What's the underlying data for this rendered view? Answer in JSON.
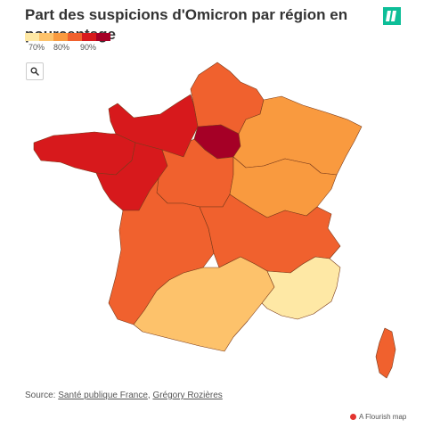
{
  "title": "Part des suspicions d'Omicron par région en pourcentage",
  "legend": {
    "colors": [
      "#fee8a5",
      "#fdc26b",
      "#f99a3f",
      "#f0612e",
      "#d7191c",
      "#a50026"
    ],
    "labels": [
      "70%",
      "80%",
      "90%"
    ]
  },
  "zoom": {
    "icon": "search-icon"
  },
  "regions": [
    {
      "name": "Hauts-de-France",
      "color": "#f0612e"
    },
    {
      "name": "Normandie",
      "color": "#d7191c"
    },
    {
      "name": "Île-de-France",
      "color": "#a50026"
    },
    {
      "name": "Grand Est",
      "color": "#f99a3f"
    },
    {
      "name": "Bretagne",
      "color": "#d7191c"
    },
    {
      "name": "Pays de la Loire",
      "color": "#d7191c"
    },
    {
      "name": "Centre-Val de Loire",
      "color": "#f0612e"
    },
    {
      "name": "Bourgogne-Franche-Comté",
      "color": "#f99a3f"
    },
    {
      "name": "Nouvelle-Aquitaine",
      "color": "#f0612e"
    },
    {
      "name": "Auvergne-Rhône-Alpes",
      "color": "#f0612e"
    },
    {
      "name": "Occitanie",
      "color": "#fdc26b"
    },
    {
      "name": "Provence-Alpes-Côte d'Azur",
      "color": "#fee8a5"
    },
    {
      "name": "Corse",
      "color": "#f0612e"
    }
  ],
  "source": {
    "prefix": "Source: ",
    "link1": "Santé publique France",
    "separator": ", ",
    "link2": "Grégory Rozières"
  },
  "flourish": {
    "label": "A Flourish map"
  }
}
